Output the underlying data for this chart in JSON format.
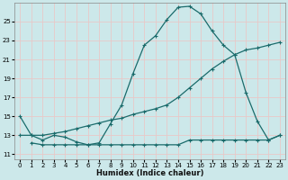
{
  "xlabel": "Humidex (Indice chaleur)",
  "bg_color": "#cce8ea",
  "grid_color": "#e8c8c8",
  "line_color": "#1a6b6b",
  "xlim": [
    -0.5,
    23.5
  ],
  "ylim": [
    10.5,
    27.0
  ],
  "yticks": [
    11,
    13,
    15,
    17,
    19,
    21,
    23,
    25
  ],
  "xticks": [
    0,
    1,
    2,
    3,
    4,
    5,
    6,
    7,
    8,
    9,
    10,
    11,
    12,
    13,
    14,
    15,
    16,
    17,
    18,
    19,
    20,
    21,
    22,
    23
  ],
  "line1_x": [
    0,
    1,
    2,
    3,
    4,
    5,
    6,
    7,
    8,
    9,
    10,
    11,
    12,
    13,
    14,
    15,
    16,
    17,
    18,
    19,
    20,
    21,
    22,
    23
  ],
  "line1_y": [
    15,
    13,
    12.5,
    13,
    12.8,
    12.3,
    12.0,
    12.2,
    14.2,
    16.2,
    19.5,
    22.5,
    23.5,
    25.2,
    26.5,
    26.6,
    25.8,
    24.0,
    22.5,
    21.5,
    17.5,
    14.5,
    12.5,
    13.0
  ],
  "line2_x": [
    0,
    1,
    2,
    3,
    4,
    5,
    6,
    7,
    8,
    9,
    10,
    11,
    12,
    13,
    14,
    15,
    16,
    17,
    18,
    19,
    20,
    21,
    22,
    23
  ],
  "line2_y": [
    13.0,
    13.0,
    13.0,
    13.2,
    13.4,
    13.7,
    14.0,
    14.3,
    14.6,
    14.8,
    15.2,
    15.5,
    15.8,
    16.2,
    17.0,
    18.0,
    19.0,
    20.0,
    20.8,
    21.5,
    22.0,
    22.2,
    22.5,
    22.8
  ],
  "line3_x": [
    1,
    2,
    3,
    4,
    5,
    6,
    7,
    8,
    9,
    10,
    11,
    12,
    13,
    14,
    15,
    16,
    17,
    18,
    19,
    20,
    21,
    22,
    23
  ],
  "line3_y": [
    12.2,
    12.0,
    12.0,
    12.0,
    12.0,
    12.0,
    12.0,
    12.0,
    12.0,
    12.0,
    12.0,
    12.0,
    12.0,
    12.0,
    12.5,
    12.5,
    12.5,
    12.5,
    12.5,
    12.5,
    12.5,
    12.5,
    13.0
  ]
}
